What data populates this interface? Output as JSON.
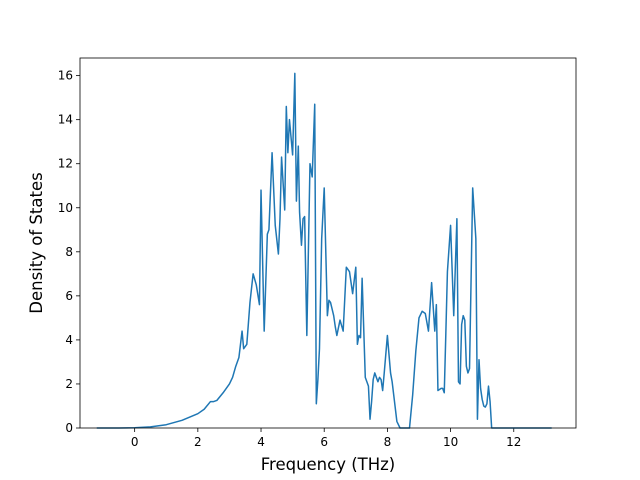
{
  "chart_data": {
    "type": "line",
    "title": "",
    "xlabel": "Frequency (THz)",
    "ylabel": "Density of States",
    "xlim": [
      -1.73,
      13.97
    ],
    "ylim": [
      0,
      16.8
    ],
    "grid": false,
    "line_color": "#1f77b4",
    "x_ticks": [
      0,
      2,
      4,
      6,
      8,
      10,
      12
    ],
    "y_ticks": [
      0,
      2,
      4,
      6,
      8,
      10,
      12,
      14,
      16
    ],
    "x_tick_labels": [
      "0",
      "2",
      "4",
      "6",
      "8",
      "10",
      "12"
    ],
    "y_tick_labels": [
      "0",
      "2",
      "4",
      "6",
      "8",
      "10",
      "12",
      "14",
      "16"
    ],
    "series": [
      {
        "x": [
          -1.2,
          -0.5,
          0.0,
          0.5,
          1.0,
          1.5,
          2.0,
          2.2,
          2.4,
          2.5,
          2.6,
          2.8,
          3.0,
          3.1,
          3.2,
          3.3,
          3.4,
          3.45,
          3.55,
          3.65,
          3.75,
          3.85,
          3.95,
          4.0,
          4.1,
          4.2,
          4.25,
          4.35,
          4.45,
          4.55,
          4.6,
          4.65,
          4.75,
          4.8,
          4.85,
          4.9,
          5.0,
          5.07,
          5.12,
          5.18,
          5.22,
          5.28,
          5.33,
          5.38,
          5.45,
          5.55,
          5.62,
          5.7,
          5.75,
          5.8,
          5.85,
          5.92,
          6.0,
          6.1,
          6.15,
          6.2,
          6.25,
          6.3,
          6.35,
          6.4,
          6.5,
          6.6,
          6.7,
          6.8,
          6.9,
          7.0,
          7.05,
          7.1,
          7.15,
          7.2,
          7.3,
          7.4,
          7.45,
          7.5,
          7.55,
          7.6,
          7.7,
          7.75,
          7.8,
          7.85,
          7.9,
          8.0,
          8.1,
          8.15,
          8.2,
          8.3,
          8.4,
          8.5,
          8.6,
          8.7,
          8.8,
          8.9,
          9.0,
          9.1,
          9.2,
          9.3,
          9.4,
          9.5,
          9.55,
          9.6,
          9.7,
          9.75,
          9.8,
          9.85,
          9.9,
          10.0,
          10.1,
          10.2,
          10.25,
          10.3,
          10.35,
          10.4,
          10.45,
          10.5,
          10.55,
          10.6,
          10.7,
          10.8,
          10.85,
          10.9,
          10.95,
          11.0,
          11.05,
          11.1,
          11.15,
          11.2,
          11.25,
          11.3,
          11.35,
          11.4,
          11.5,
          11.6,
          11.7,
          11.8,
          11.85,
          11.9,
          11.95,
          12.0,
          12.05,
          12.1,
          12.5,
          13.2
        ],
        "y": [
          0,
          0,
          0.01,
          0.05,
          0.15,
          0.35,
          0.65,
          0.85,
          1.2,
          1.2,
          1.25,
          1.6,
          2.0,
          2.3,
          2.8,
          3.2,
          4.4,
          3.6,
          3.8,
          5.7,
          7.0,
          6.5,
          5.6,
          10.8,
          4.4,
          8.8,
          9.0,
          12.5,
          9.2,
          7.9,
          9.5,
          12.3,
          9.9,
          14.6,
          12.5,
          14.0,
          12.4,
          16.1,
          10.3,
          12.8,
          9.8,
          8.3,
          9.5,
          9.6,
          4.2,
          12.0,
          11.4,
          14.7,
          1.1,
          2.2,
          3.6,
          8.6,
          10.9,
          5.1,
          5.8,
          5.7,
          5.4,
          5.1,
          4.6,
          4.2,
          4.9,
          4.4,
          7.3,
          7.1,
          6.1,
          7.3,
          3.8,
          4.2,
          4.1,
          6.8,
          2.3,
          1.9,
          0.4,
          1.2,
          2.2,
          2.5,
          2.1,
          2.3,
          2.2,
          1.7,
          2.5,
          4.2,
          2.5,
          2.1,
          1.5,
          0.3,
          0,
          0,
          0,
          0,
          1.5,
          3.5,
          5.0,
          5.3,
          5.2,
          4.4,
          6.6,
          4.4,
          5.6,
          1.7,
          1.8,
          1.8,
          1.6,
          4.3,
          7.1,
          9.2,
          5.1,
          9.5,
          2.1,
          2.0,
          4.7,
          5.1,
          4.9,
          2.8,
          2.5,
          2.7,
          10.9,
          8.6,
          0.4,
          3.1,
          1.8,
          1.3,
          1.0,
          0.95,
          1.1,
          1.9,
          1.2,
          0,
          0,
          0,
          0,
          0,
          0,
          0,
          0,
          0,
          0,
          0,
          0,
          0,
          0,
          0
        ]
      }
    ]
  }
}
